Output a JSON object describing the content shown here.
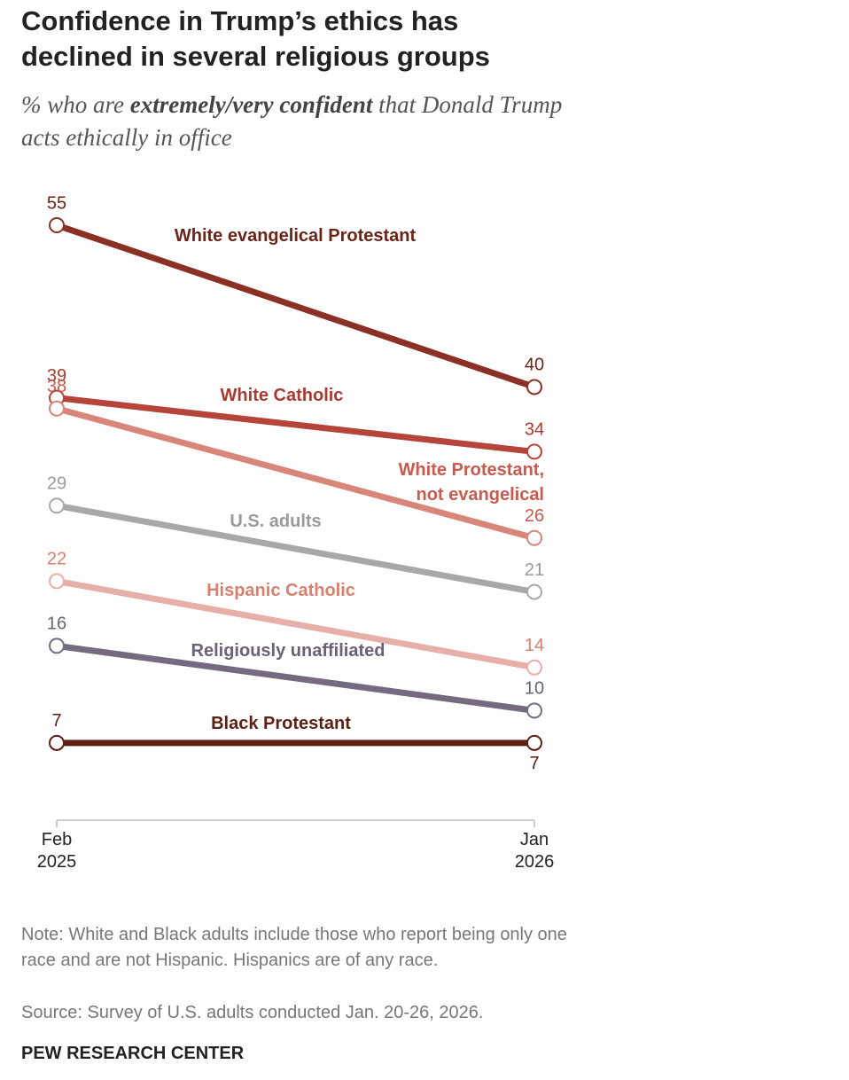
{
  "chart_data": {
    "type": "line",
    "title": "Confidence in Trump’s ethics has declined in several religious groups",
    "subtitle": {
      "before": "% who are ",
      "emphasis": "extremely/very confident",
      "after": " that Donald Trump acts ethically in office"
    },
    "categories": [
      "Feb 2025",
      "Jan 2026"
    ],
    "ylim": [
      0,
      55
    ],
    "series": [
      {
        "name": "White evangelical Protestant",
        "color": "#8a3024",
        "label_color": "#6b2418",
        "values": [
          55,
          40
        ]
      },
      {
        "name": "White Catholic",
        "color": "#b5443a",
        "label_color": "#a83a2f",
        "values": [
          39,
          34
        ]
      },
      {
        "name": "White Protestant, not evangelical",
        "color": "#d8857a",
        "label_color": "#c95a4d",
        "values": [
          38,
          26
        ]
      },
      {
        "name": "U.S. adults",
        "color": "#a8a8a8",
        "label_color": "#9a9a9a",
        "values": [
          29,
          21
        ]
      },
      {
        "name": "Hispanic Catholic",
        "color": "#e6b0a8",
        "label_color": "#d9806f",
        "values": [
          22,
          14
        ]
      },
      {
        "name": "Religiously unaffiliated",
        "color": "#746b80",
        "label_color": "#6a6178",
        "values": [
          16,
          10
        ]
      },
      {
        "name": "Black Protestant",
        "color": "#5c1f14",
        "label_color": "#5c1f14",
        "values": [
          7,
          7
        ]
      }
    ],
    "note": "Note: White and Black adults include those who report being only one race and are not Hispanic. Hispanics are of any race.",
    "source": "Source: Survey of U.S. adults conducted Jan. 20-26, 2026.",
    "branding": "PEW RESEARCH CENTER"
  }
}
